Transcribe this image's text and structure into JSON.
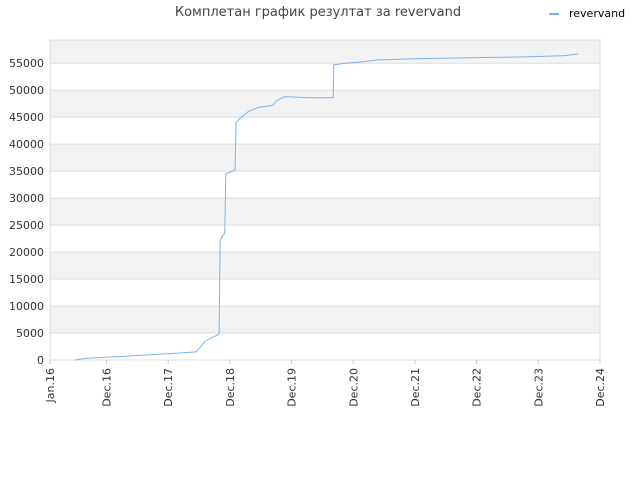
{
  "chart_data": {
    "type": "line",
    "title": "Комплетан график резултат за revervand",
    "series": [
      {
        "name": "revervand",
        "color": "#7ab4ea",
        "x": [
          4.9,
          6.8,
          10.7,
          14.6,
          17.9,
          21.4,
          25.3,
          28.4,
          30.2,
          32.9,
          33.1,
          33.5,
          34.0,
          34.2,
          35.0,
          36.0,
          36.2,
          37.0,
          38.5,
          40.5,
          43.4,
          44.0,
          45.7,
          50.6,
          55.1,
          55.2,
          57.4,
          60.3,
          63.6,
          70.0,
          81.7,
          93.4,
          100.2,
          102.7
        ],
        "values": [
          0,
          300,
          500,
          700,
          900,
          1100,
          1300,
          1500,
          3500,
          4800,
          22000,
          23000,
          23500,
          34500,
          34800,
          35200,
          44000,
          44800,
          46000,
          46800,
          47200,
          48000,
          48800,
          48600,
          48600,
          54700,
          55000,
          55200,
          55600,
          55800,
          56000,
          56200,
          56400,
          56700
        ]
      }
    ],
    "xlim": [
      0,
      107
    ],
    "xticks": [
      {
        "value": 0,
        "label": "Jan.16"
      },
      {
        "value": 11,
        "label": "Dec.16"
      },
      {
        "value": 23,
        "label": "Dec.17"
      },
      {
        "value": 35,
        "label": "Dec.18"
      },
      {
        "value": 47,
        "label": "Dec.19"
      },
      {
        "value": 59,
        "label": "Dec.20"
      },
      {
        "value": 71,
        "label": "Dec.21"
      },
      {
        "value": 83,
        "label": "Dec.22"
      },
      {
        "value": 95,
        "label": "Dec.23"
      },
      {
        "value": 107,
        "label": "Dec.24"
      }
    ],
    "ylim": [
      0,
      59300
    ],
    "yticks": [
      0,
      5000,
      10000,
      15000,
      20000,
      25000,
      30000,
      35000,
      40000,
      45000,
      50000,
      55000
    ],
    "grid": true,
    "legend": "top-right"
  }
}
